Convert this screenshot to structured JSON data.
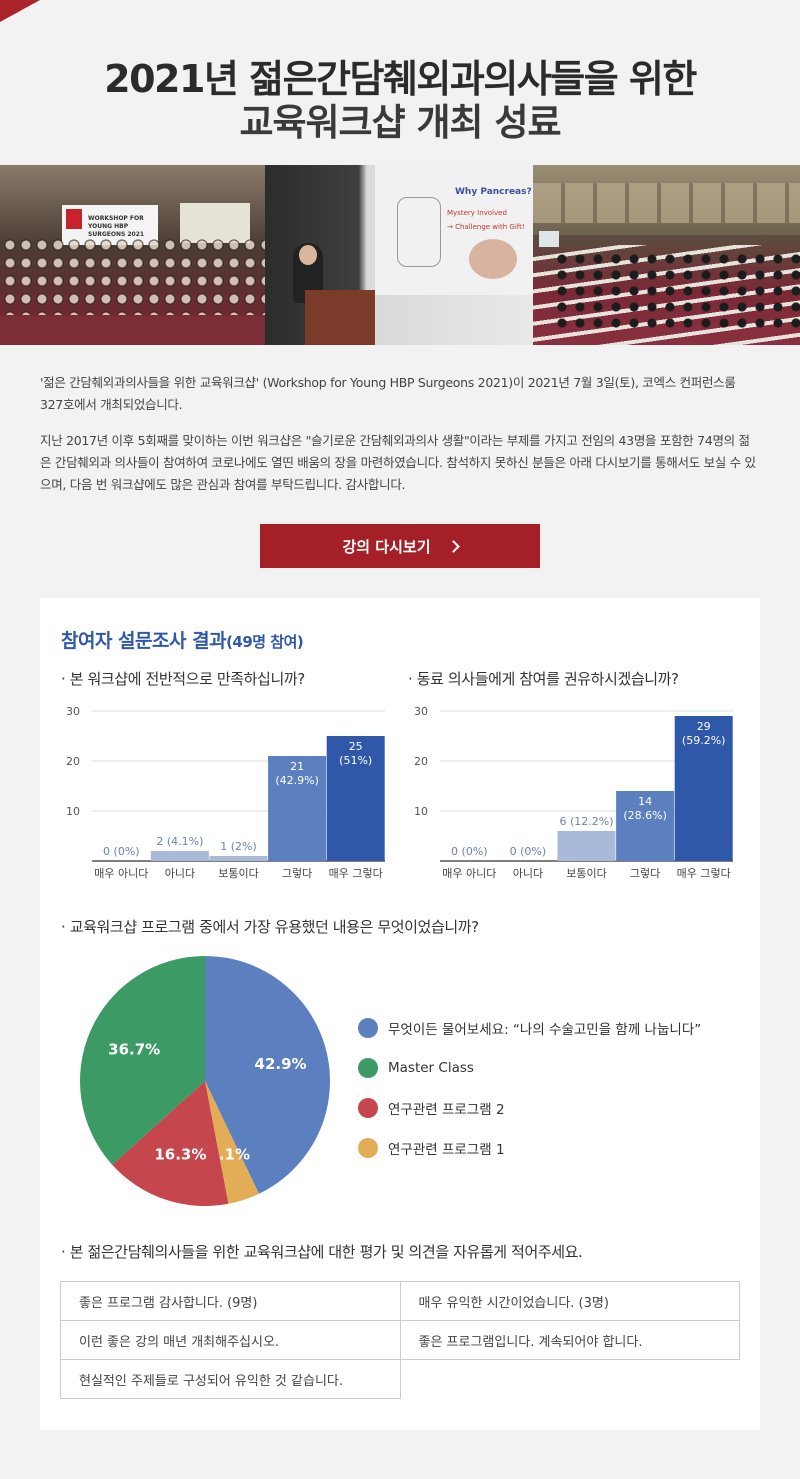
{
  "header": {
    "title_line1": "2021년 젊은간담췌외과의사들을 위한",
    "title_line2": "교육워크샵 개최 성료"
  },
  "photos": {
    "banner_text": "WORKSHOP FOR YOUNG HBP SURGEONS 2021",
    "slide_title": "Why Pancreas?",
    "slide_line1": "Mystery Involved",
    "slide_line2": "→ Challenge with Gift!"
  },
  "intro": {
    "paragraph1": "'젊은 간담췌외과의사들을 위한 교육워크샵' (Workshop for Young HBP Surgeons 2021)이 2021년 7월 3일(토), 코엑스 컨퍼런스룸 327호에서 개최되었습니다.",
    "paragraph2": "지난 2017년 이후 5회째를 맞이하는 이번 워크샵은 \"슬기로운 간담췌외과의사 생활\"이라는 부제를 가지고 전임의 43명을 포함한 74명의 젊은 간담췌외과 의사들이 참여하여 코로나에도 열띤 배움의 장을 마련하였습니다. 참석하지 못하신 분들은 아래 다시보기를 통해서도 보실 수 있으며, 다음 번 워크샵에도 많은 관심과 참여를 부탁드립니다. 감사합니다."
  },
  "replay_button": {
    "label": "강의 다시보기"
  },
  "survey": {
    "title": "참여자 설문조사 결과",
    "title_suffix": "(49명 참여)",
    "q1": "· 본 워크샵에 전반적으로 만족하십니까?",
    "q2": "· 동료 의사들에게 참여를 권유하시겠습니까?",
    "q3": "· 교육워크샵 프로그램 중에서 가장 유용했던 내용은 무엇이었습니까?",
    "q4": "· 본 젊은간담췌의사들을 위한 교육워크샵에 대한 평가 및 의견을 자유롭게 적어주세요.",
    "opinions": [
      "좋은 프로그램 감사합니다. (9명)",
      "매우 유익한 시간이었습니다. (3명)",
      "이런 좋은 강의 매년 개최해주십시오.",
      "좋은 프로그램입니다. 계속되어야 합니다.",
      "현실적인 주제들로 구성되어 유익한 것 같습니다."
    ]
  },
  "chart_data": [
    {
      "type": "bar",
      "title": "본 워크샵에 전반적으로 만족하십니까?",
      "categories": [
        "매우 아니다",
        "아니다",
        "보통이다",
        "그렇다",
        "매우 그렇다"
      ],
      "values": [
        0,
        2,
        1,
        21,
        25
      ],
      "labels": [
        "0 (0%)",
        "2 (4.1%)",
        "1 (2%)",
        "21\n(42.9%)",
        "25\n(51%)"
      ],
      "colors": [
        "#a9b9da",
        "#a9b9da",
        "#a9b9da",
        "#5b7fbf",
        "#2f58a8"
      ],
      "yticks": [
        10,
        20,
        30
      ],
      "ylim": [
        0,
        30
      ],
      "grid": true
    },
    {
      "type": "bar",
      "title": "동료 의사들에게 참여를 권유하시겠습니까?",
      "categories": [
        "매우 아니다",
        "아니다",
        "보통이다",
        "그렇다",
        "매우 그렇다"
      ],
      "values": [
        0,
        0,
        6,
        14,
        29
      ],
      "labels": [
        "0 (0%)",
        "0 (0%)",
        "6 (12.2%)",
        "14\n(28.6%)",
        "29\n(59.2%)"
      ],
      "colors": [
        "#a9b9da",
        "#a9b9da",
        "#a9b9da",
        "#5b7fbf",
        "#2f58a8"
      ],
      "yticks": [
        10,
        20,
        30
      ],
      "ylim": [
        0,
        30
      ],
      "grid": true
    },
    {
      "type": "pie",
      "title": "교육워크샵 프로그램 중에서 가장 유용했던 내용은 무엇이었습니까?",
      "slices": [
        {
          "name": "무엇이든 물어보세요: “나의 수술고민을 함께 나눕니다”",
          "value": 42.9,
          "label": "42.9%",
          "color": "#5b7fbf"
        },
        {
          "name": "연구관련 프로그램 1",
          "value": 4.1,
          "label": "4.1%",
          "color": "#e2ad56"
        },
        {
          "name": "연구관련 프로그램 2",
          "value": 16.3,
          "label": "16.3%",
          "color": "#c5474d"
        },
        {
          "name": "Master Class",
          "value": 36.7,
          "label": "36.7%",
          "color": "#3c9b64"
        }
      ],
      "legend_order": [
        "무엇이든 물어보세요: “나의 수술고민을 함께 나눕니다”",
        "Master Class",
        "연구관련 프로그램 2",
        "연구관련 프로그램 1"
      ]
    }
  ]
}
